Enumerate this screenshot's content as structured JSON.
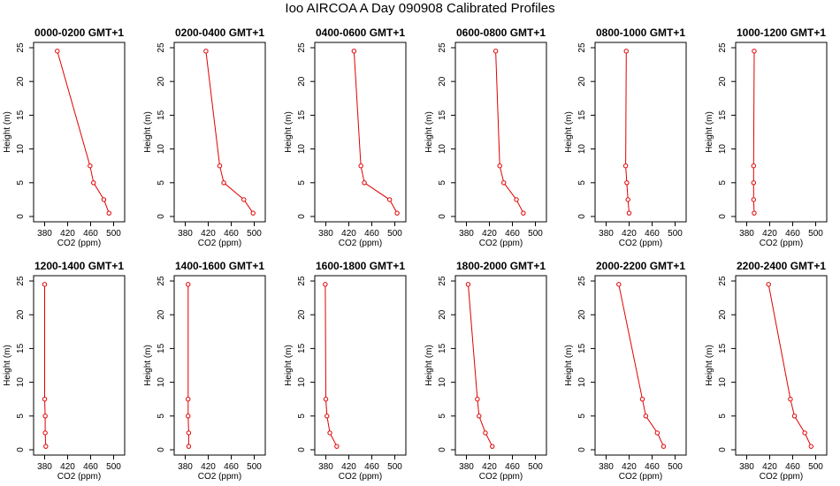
{
  "title": "Ioo AIRCOA A  Day 090908  Calibrated Profiles",
  "series_color": "#e00000",
  "chart_data": [
    {
      "type": "line",
      "title": "0000-0200 GMT+1",
      "xlabel": "CO2 (ppm)",
      "ylabel": "Height (m)",
      "xlim": [
        370,
        510
      ],
      "ylim": [
        0,
        25
      ],
      "xticks": [
        380,
        420,
        460,
        500
      ],
      "yticks": [
        0,
        5,
        10,
        15,
        20,
        25
      ],
      "x": [
        402,
        459,
        465,
        483,
        492
      ],
      "y": [
        24.5,
        7.5,
        5,
        2.5,
        0.5
      ]
    },
    {
      "type": "line",
      "title": "0200-0400 GMT+1",
      "xlabel": "CO2 (ppm)",
      "ylabel": "Height (m)",
      "xlim": [
        370,
        510
      ],
      "ylim": [
        0,
        25
      ],
      "xticks": [
        380,
        420,
        460,
        500
      ],
      "yticks": [
        0,
        5,
        10,
        15,
        20,
        25
      ],
      "x": [
        416,
        440,
        447,
        482,
        498
      ],
      "y": [
        24.5,
        7.5,
        5,
        2.5,
        0.5
      ]
    },
    {
      "type": "line",
      "title": "0400-0600 GMT+1",
      "xlabel": "CO2 (ppm)",
      "ylabel": "Height (m)",
      "xlim": [
        370,
        510
      ],
      "ylim": [
        0,
        25
      ],
      "xticks": [
        380,
        420,
        460,
        500
      ],
      "yticks": [
        0,
        5,
        10,
        15,
        20,
        25
      ],
      "x": [
        429,
        441,
        447,
        491,
        504
      ],
      "y": [
        24.5,
        7.5,
        5,
        2.5,
        0.5
      ]
    },
    {
      "type": "line",
      "title": "0600-0800 GMT+1",
      "xlabel": "CO2 (ppm)",
      "ylabel": "Height (m)",
      "xlim": [
        370,
        510
      ],
      "ylim": [
        0,
        25
      ],
      "xticks": [
        380,
        420,
        460,
        500
      ],
      "yticks": [
        0,
        5,
        10,
        15,
        20,
        25
      ],
      "x": [
        431,
        438,
        445,
        467,
        479
      ],
      "y": [
        24.5,
        7.5,
        5,
        2.5,
        0.5
      ]
    },
    {
      "type": "line",
      "title": "0800-1000 GMT+1",
      "xlabel": "CO2 (ppm)",
      "ylabel": "Height (m)",
      "xlim": [
        370,
        510
      ],
      "ylim": [
        0,
        25
      ],
      "xticks": [
        380,
        420,
        460,
        500
      ],
      "yticks": [
        0,
        5,
        10,
        15,
        20,
        25
      ],
      "x": [
        415,
        414,
        416,
        418,
        420
      ],
      "y": [
        24.5,
        7.5,
        5,
        2.5,
        0.5
      ]
    },
    {
      "type": "line",
      "title": "1000-1200 GMT+1",
      "xlabel": "CO2 (ppm)",
      "ylabel": "Height (m)",
      "xlim": [
        370,
        510
      ],
      "ylim": [
        0,
        25
      ],
      "xticks": [
        380,
        420,
        460,
        500
      ],
      "yticks": [
        0,
        5,
        10,
        15,
        20,
        25
      ],
      "x": [
        393,
        392,
        392,
        392,
        393
      ],
      "y": [
        24.5,
        7.5,
        5,
        2.5,
        0.5
      ]
    },
    {
      "type": "line",
      "title": "1200-1400 GMT+1",
      "xlabel": "CO2 (ppm)",
      "ylabel": "Height (m)",
      "xlim": [
        370,
        510
      ],
      "ylim": [
        0,
        25
      ],
      "xticks": [
        380,
        420,
        460,
        500
      ],
      "yticks": [
        0,
        5,
        10,
        15,
        20,
        25
      ],
      "x": [
        380,
        380,
        381,
        381,
        382
      ],
      "y": [
        24.5,
        7.5,
        5,
        2.5,
        0.5
      ]
    },
    {
      "type": "line",
      "title": "1400-1600 GMT+1",
      "xlabel": "CO2 (ppm)",
      "ylabel": "Height (m)",
      "xlim": [
        370,
        510
      ],
      "ylim": [
        0,
        25
      ],
      "xticks": [
        380,
        420,
        460,
        500
      ],
      "yticks": [
        0,
        5,
        10,
        15,
        20,
        25
      ],
      "x": [
        385,
        385,
        385,
        386,
        386
      ],
      "y": [
        24.5,
        7.5,
        5,
        2.5,
        0.5
      ]
    },
    {
      "type": "line",
      "title": "1600-1800 GMT+1",
      "xlabel": "CO2 (ppm)",
      "ylabel": "Height (m)",
      "xlim": [
        370,
        510
      ],
      "ylim": [
        0,
        25
      ],
      "xticks": [
        380,
        420,
        460,
        500
      ],
      "yticks": [
        0,
        5,
        10,
        15,
        20,
        25
      ],
      "x": [
        379,
        380,
        382,
        387,
        399
      ],
      "y": [
        24.5,
        7.5,
        5,
        2.5,
        0.5
      ]
    },
    {
      "type": "line",
      "title": "1800-2000 GMT+1",
      "xlabel": "CO2 (ppm)",
      "ylabel": "Height (m)",
      "xlim": [
        370,
        510
      ],
      "ylim": [
        0,
        25
      ],
      "xticks": [
        380,
        420,
        460,
        500
      ],
      "yticks": [
        0,
        5,
        10,
        15,
        20,
        25
      ],
      "x": [
        383,
        399,
        402,
        413,
        425
      ],
      "y": [
        24.5,
        7.5,
        5,
        2.5,
        0.5
      ]
    },
    {
      "type": "line",
      "title": "2000-2200 GMT+1",
      "xlabel": "CO2 (ppm)",
      "ylabel": "Height (m)",
      "xlim": [
        370,
        510
      ],
      "ylim": [
        0,
        25
      ],
      "xticks": [
        380,
        420,
        460,
        500
      ],
      "yticks": [
        0,
        5,
        10,
        15,
        20,
        25
      ],
      "x": [
        402,
        443,
        449,
        469,
        480
      ],
      "y": [
        24.5,
        7.5,
        5,
        2.5,
        0.5
      ]
    },
    {
      "type": "line",
      "title": "2200-2400 GMT+1",
      "xlabel": "CO2 (ppm)",
      "ylabel": "Height (m)",
      "xlim": [
        370,
        510
      ],
      "ylim": [
        0,
        25
      ],
      "xticks": [
        380,
        420,
        460,
        500
      ],
      "yticks": [
        0,
        5,
        10,
        15,
        20,
        25
      ],
      "x": [
        418,
        456,
        463,
        481,
        492
      ],
      "y": [
        24.5,
        7.5,
        5,
        2.5,
        0.5
      ]
    }
  ]
}
